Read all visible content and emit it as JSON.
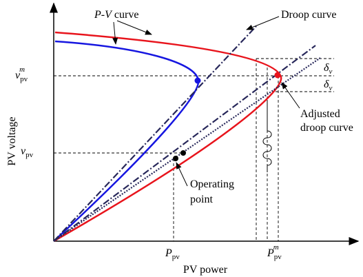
{
  "labels": {
    "pv_curve": {
      "p": "P",
      "dash": "-",
      "v": "V",
      "rest": " curve"
    },
    "droop_curve": "Droop curve",
    "delta_upper": {
      "base": "δ",
      "sub": "v"
    },
    "delta_lower": {
      "base": "δ",
      "sub": "v"
    },
    "v_pv_m": {
      "base": "v",
      "sub": "pv",
      "sup": "m"
    },
    "v_pv": {
      "base": "v",
      "sub": "pv"
    },
    "y_axis": "PV voltage",
    "x_axis": "PV power",
    "p_pv": {
      "base": "P",
      "sub": "pv"
    },
    "p_pv_m": {
      "base": "P",
      "sub": "pv",
      "sup": "m"
    },
    "adjusted_droop": [
      "Adjusted",
      "droop curve"
    ],
    "operating_point": [
      "Operating",
      "point"
    ]
  }
}
